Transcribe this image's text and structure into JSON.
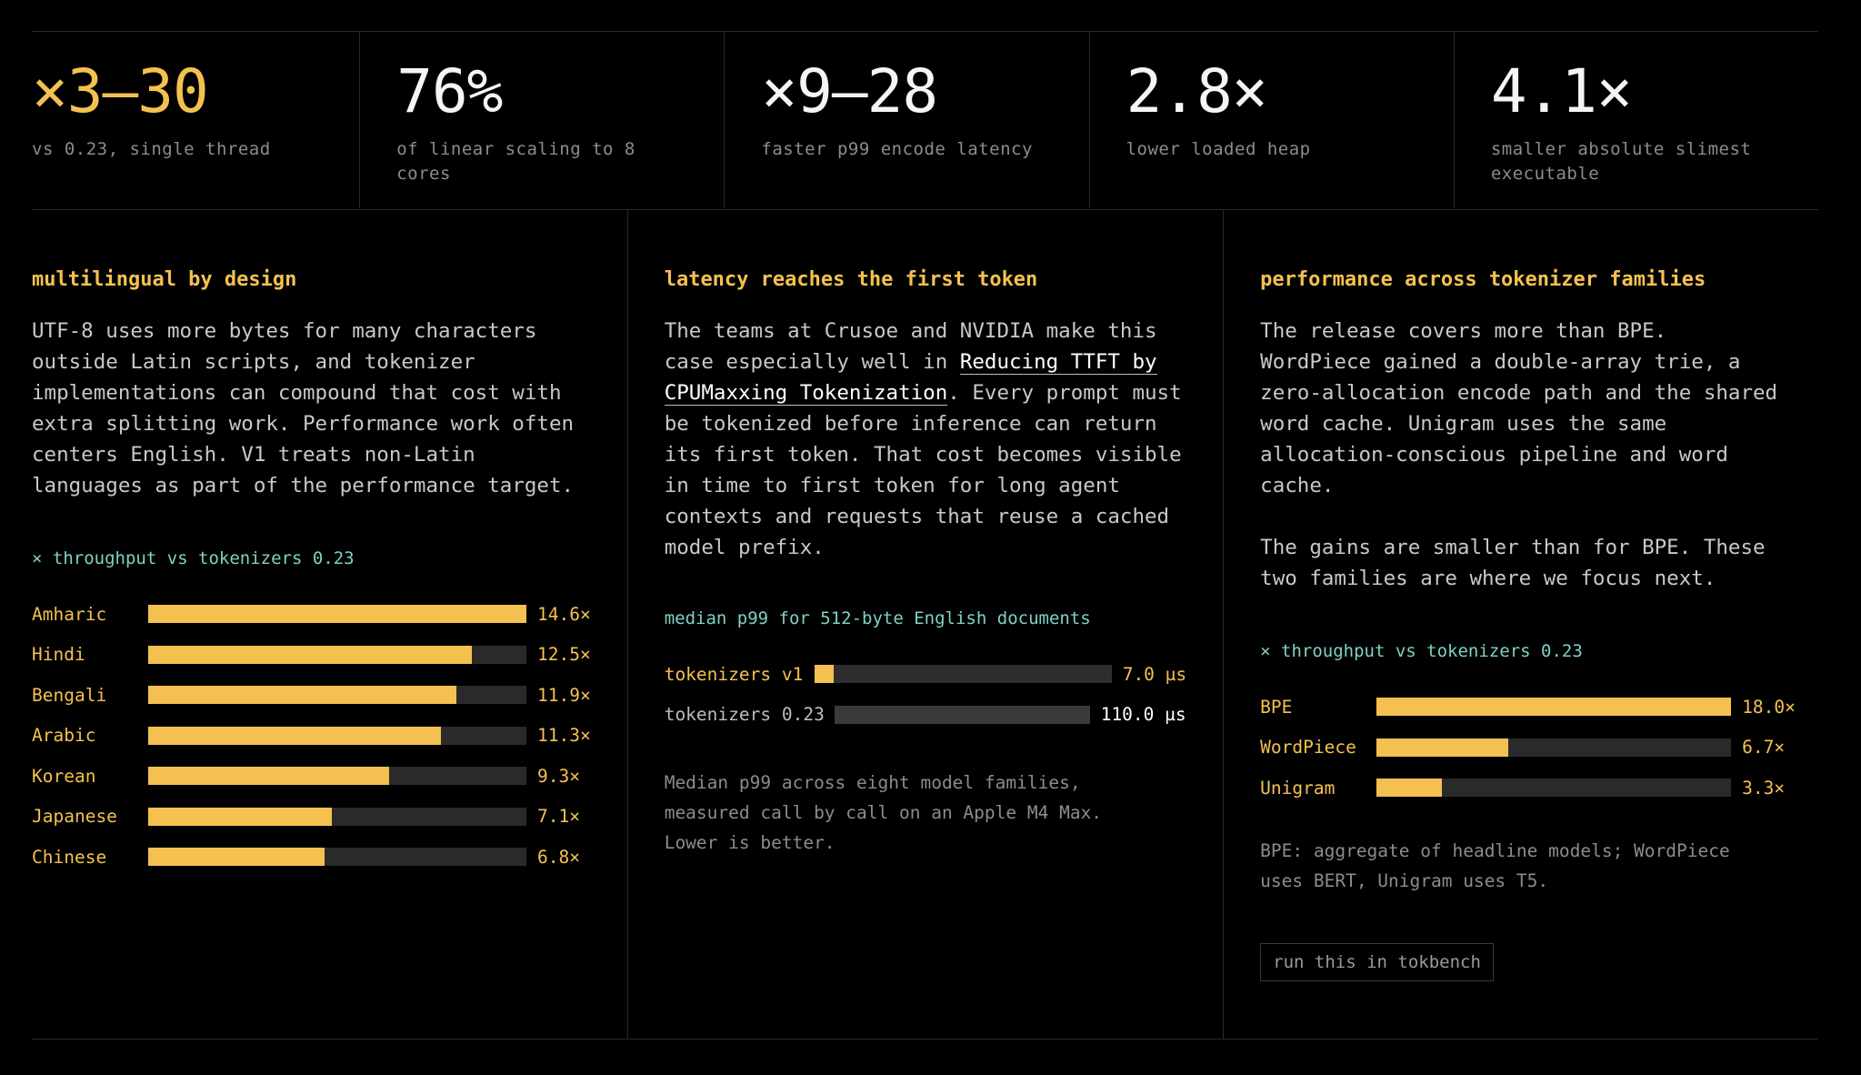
{
  "stats": [
    {
      "value": "×3–30",
      "caption": "vs 0.23, single thread",
      "accent": true
    },
    {
      "value": "76%",
      "caption": "of linear scaling to 8\ncores",
      "accent": false
    },
    {
      "value": "×9–28",
      "caption": "faster p99 encode latency",
      "accent": false
    },
    {
      "value": "2.8×",
      "caption": "lower loaded heap",
      "accent": false
    },
    {
      "value": "4.1×",
      "caption": "smaller absolute slimest\nexecutable",
      "accent": false
    }
  ],
  "multilingual": {
    "title": "multilingual by design",
    "body": "UTF-8 uses more bytes for many characters\noutside Latin scripts, and tokenizer\nimplementations can compound that cost with\nextra splitting work. Performance work often\ncenters English. V1 treats non-Latin\nlanguages as part of the performance target.",
    "chart_label": "× throughput vs tokenizers 0.23"
  },
  "latency": {
    "title": "latency reaches the first token",
    "body_pre": "The teams at Crusoe and NVIDIA make this\ncase especially well in ",
    "link_text": "Reducing TTFT by\nCPUMaxxing Tokenization",
    "body_post": ". Every prompt must\nbe tokenized before inference can return\nits first token. That cost becomes visible\nin time to first token for long agent\ncontexts and requests that reuse a cached\nmodel prefix.",
    "chart_label": "median p99 for 512-byte English documents",
    "note": "Median p99 across eight model families,\nmeasured call by call on an Apple M4 Max.\nLower is better."
  },
  "families": {
    "title": "performance across tokenizer families",
    "body1": "The release covers more than BPE.\nWordPiece gained a double-array trie, a\nzero-allocation encode path and the shared\nword cache. Unigram uses the same\nallocation-conscious pipeline and word\ncache.",
    "body2": "The gains are smaller than for BPE. These\ntwo families are where we focus next.",
    "chart_label": "× throughput vs tokenizers 0.23",
    "note": "BPE: aggregate of headline models; WordPiece\nuses BERT, Unigram uses T5.",
    "cta": "run this in tokbench"
  },
  "colors": {
    "accent": "#f4c150",
    "teal": "#7fd1c4",
    "track": "#2a2a2a",
    "background": "#000000"
  },
  "chart_data": [
    {
      "type": "bar",
      "orientation": "horizontal",
      "categories": [
        "Amharic",
        "Hindi",
        "Bengali",
        "Arabic",
        "Korean",
        "Japanese",
        "Chinese"
      ],
      "values": [
        14.6,
        12.5,
        11.9,
        11.3,
        9.3,
        7.1,
        6.8
      ],
      "labels": [
        "14.6×",
        "12.5×",
        "11.9×",
        "11.3×",
        "9.3×",
        "7.1×",
        "6.8×"
      ],
      "title": "× throughput vs tokenizers 0.23",
      "xlim": [
        0,
        14.6
      ]
    },
    {
      "type": "bar",
      "orientation": "horizontal",
      "categories": [
        "tokenizers v1",
        "tokenizers 0.23"
      ],
      "values": [
        7.0,
        110.0
      ],
      "labels": [
        "7.0 µs",
        "110.0 µs"
      ],
      "title": "median p99 for 512-byte English documents",
      "unit": "µs",
      "xlim": [
        0,
        110.0
      ]
    },
    {
      "type": "bar",
      "orientation": "horizontal",
      "categories": [
        "BPE",
        "WordPiece",
        "Unigram"
      ],
      "values": [
        18.0,
        6.7,
        3.3
      ],
      "labels": [
        "18.0×",
        "6.7×",
        "3.3×"
      ],
      "title": "× throughput vs tokenizers 0.23",
      "xlim": [
        0,
        18.0
      ]
    }
  ]
}
